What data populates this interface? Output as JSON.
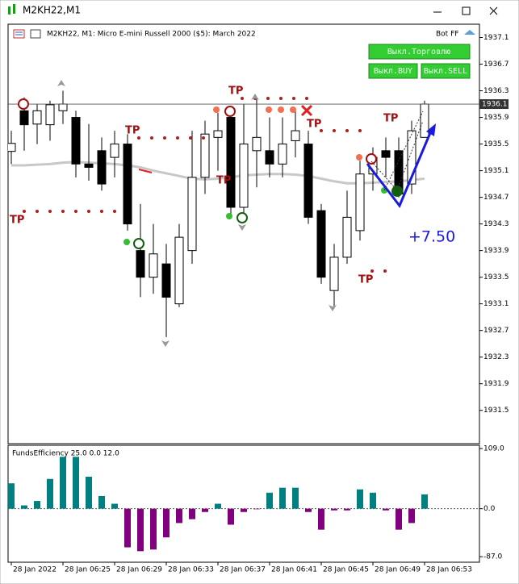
{
  "window": {
    "title": "M2KH22,M1"
  },
  "buttons": [
    "Выкл.Торговлю",
    "Выкл.BUY",
    "Выкл.SELL"
  ],
  "chart_data": [
    {
      "type": "candlestick",
      "title": "M2KH22, M1:  Micro E-mini Russell 2000 ($5): March 2022",
      "label": "Bot FF",
      "tp_label": "TP",
      "annotation": "+7.50",
      "categories": [
        "28 Jan 2022",
        null,
        null,
        null,
        "28 Jan 06:25",
        null,
        null,
        null,
        "28 Jan 06:29",
        null,
        null,
        null,
        "28 Jan 06:33",
        null,
        null,
        null,
        "28 Jan 06:37",
        null,
        null,
        null,
        "28 Jan 06:41",
        null,
        null,
        null,
        "28 Jan 06:45",
        null,
        null,
        null,
        "28 Jan 06:49",
        null,
        null,
        null,
        "28 Jan 06:53"
      ],
      "open": [
        1935.39,
        1936.0,
        1935.8,
        1935.79,
        1936.0,
        1935.9,
        1935.2,
        1935.4,
        1935.3,
        1935.5,
        1933.9,
        1933.5,
        1933.7,
        1933.1,
        1933.9,
        1935.0,
        1935.6,
        1935.9,
        1934.55,
        1935.4,
        1935.4,
        1935.2,
        1935.55,
        1935.5,
        1934.5,
        1933.3,
        1933.8,
        1934.2,
        1935.05,
        1935.4,
        1935.4,
        1934.9,
        1935.6
      ],
      "high": [
        1935.7,
        1936.2,
        1936.1,
        1936.15,
        1936.3,
        1936.0,
        1935.8,
        1935.6,
        1935.7,
        1935.65,
        1934.6,
        1934.3,
        1934.0,
        1934.3,
        1935.7,
        1935.85,
        1935.97,
        1936.05,
        1936.1,
        1936.2,
        1935.9,
        1935.9,
        1936.0,
        1935.7,
        1934.6,
        1934.0,
        1934.8,
        1935.25,
        1935.45,
        1935.6,
        1935.6,
        1935.85,
        1936.15
      ],
      "low": [
        1935.2,
        1935.4,
        1935.5,
        1935.55,
        1935.8,
        1935.0,
        1934.95,
        1934.8,
        1935.0,
        1934.2,
        1933.2,
        1933.25,
        1932.6,
        1933.05,
        1933.7,
        1934.75,
        1935.1,
        1934.45,
        1934.4,
        1934.85,
        1935.0,
        1935.0,
        1935.3,
        1934.3,
        1933.4,
        1933.05,
        1933.7,
        1934.05,
        1934.8,
        1935.0,
        1934.7,
        1934.75,
        1935.6
      ],
      "close": [
        1935.51,
        1935.79,
        1936.0,
        1936.09,
        1936.1,
        1935.2,
        1935.15,
        1934.9,
        1935.5,
        1934.3,
        1933.5,
        1933.85,
        1933.2,
        1934.1,
        1935.0,
        1935.65,
        1935.7,
        1934.55,
        1935.5,
        1935.6,
        1935.2,
        1935.5,
        1935.7,
        1934.4,
        1933.5,
        1933.8,
        1934.4,
        1935.05,
        1935.3,
        1935.3,
        1934.75,
        1935.7,
        1936.1
      ],
      "ma_values": [
        1935.18,
        1935.18,
        1935.19,
        1935.2,
        1935.22,
        1935.23,
        1935.22,
        1935.21,
        1935.2,
        1935.18,
        1935.15,
        1935.1,
        1935.06,
        1935.02,
        1934.98,
        1934.97,
        1934.98,
        1935.0,
        1935.03,
        1935.04,
        1935.05,
        1935.05,
        1935.04,
        1935.02,
        1934.98,
        1934.94,
        1934.91,
        1934.91,
        1934.92,
        1934.93,
        1934.94,
        1934.96,
        1934.98
      ],
      "up_color": "#ffffff",
      "down_color": "#000000",
      "ma_color": "#c8c8c8",
      "current_price": 1936.1,
      "ylim": [
        1931.0,
        1937.3
      ],
      "yticks": [
        1937.1,
        1936.7,
        1936.3,
        1935.9,
        1935.5,
        1935.1,
        1934.7,
        1934.3,
        1933.9,
        1933.5,
        1933.1,
        1932.7,
        1932.3,
        1931.9,
        1931.5
      ]
    },
    {
      "type": "bar",
      "title": "FundsEfficiency 25.0 0.0 12.0",
      "values": [
        46,
        6,
        14,
        54,
        94,
        94,
        58,
        23,
        9,
        -70,
        -77,
        -74,
        -52,
        -26,
        -19,
        -6,
        9,
        -29,
        -6,
        -1,
        29,
        38,
        38,
        -6,
        -38,
        -3,
        -3,
        35,
        29,
        -3,
        -38,
        -26,
        26
      ],
      "positive_color": "#008080",
      "negative_color": "#800080",
      "ylim": [
        -97,
        115
      ],
      "yticks": [
        {
          "value": 109,
          "label": "109.0"
        },
        {
          "value": 0,
          "label": "0.0"
        },
        {
          "value": -87,
          "label": "-87.0"
        }
      ]
    }
  ]
}
